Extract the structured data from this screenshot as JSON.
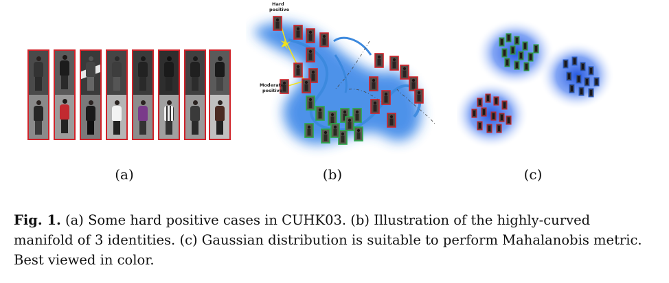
{
  "panels": {
    "a": {
      "label": "(a)"
    },
    "b": {
      "label": "(b)",
      "annotation_hard": "Hard",
      "annotation_hard2": "positive",
      "annotation_mod": "Moderate",
      "annotation_mod2": "positive"
    },
    "c": {
      "label": "(c)"
    }
  },
  "caption": {
    "label": "Fig. 1.",
    "text": " (a) Some hard positive cases in CUHK03. (b) Illustration of the highly-curved manifold of 3 identities. (c) Gaussian distribution is suitable to perform Mahalanobis metric. Best viewed in color."
  },
  "colors": {
    "identity_red": "#d0232a",
    "identity_green": "#2aa84a",
    "identity_blue": "#2a5fd0",
    "manifold_blue": "#2f7fe6",
    "arrow_yellow": "#f2e21a"
  }
}
